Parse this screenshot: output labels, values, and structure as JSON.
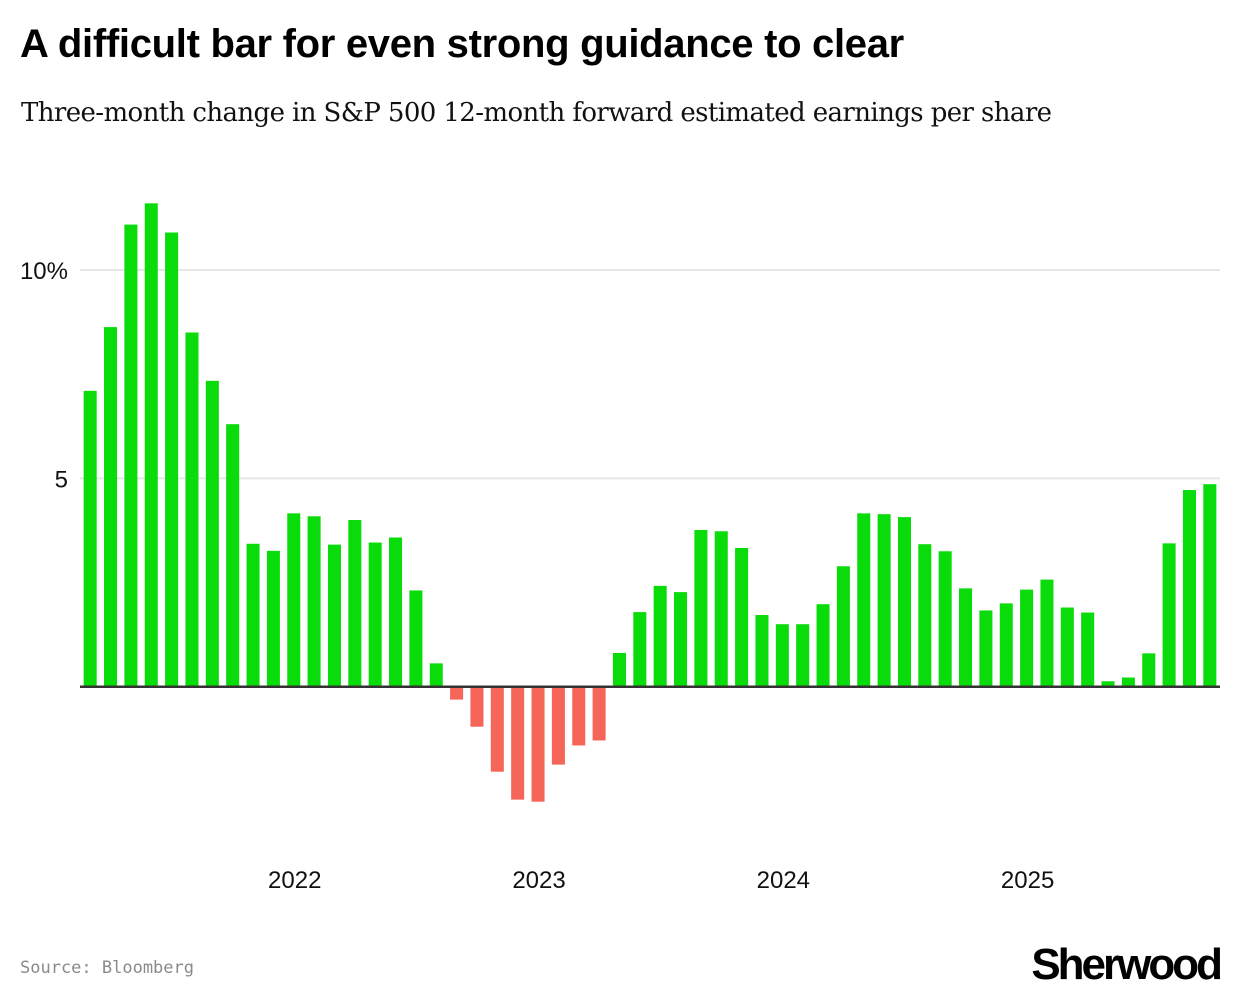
{
  "header": {
    "title": "A difficult bar for even strong guidance to clear",
    "subtitle": "Three-month change in S&P 500 12-month forward estimated earnings per share"
  },
  "footer": {
    "source": "Source: Bloomberg",
    "logo": "Sherwood"
  },
  "colors": {
    "positive": "#0adb0a",
    "negative": "#f66658",
    "baseline": "#333333",
    "gridline": "#e6e6e6"
  },
  "chart_data": {
    "type": "bar",
    "title": "A difficult bar for even strong guidance to clear",
    "subtitle": "Three-month change in S&P 500 12-month forward estimated earnings per share",
    "xlabel": "",
    "ylabel": "",
    "ylim": [
      -3.5,
      12
    ],
    "grid": true,
    "legend": "none",
    "y_ticks": [
      {
        "value": 10,
        "label": "10%"
      },
      {
        "value": 5,
        "label": "5"
      }
    ],
    "x_ticks": [
      {
        "index": 10,
        "label": "2022"
      },
      {
        "index": 22,
        "label": "2023"
      },
      {
        "index": 34,
        "label": "2024"
      },
      {
        "index": 46,
        "label": "2025"
      }
    ],
    "categories": [
      "2021-03",
      "2021-04",
      "2021-05",
      "2021-06",
      "2021-07",
      "2021-08",
      "2021-09",
      "2021-10",
      "2021-11",
      "2021-12",
      "2022-01",
      "2022-02",
      "2022-03",
      "2022-04",
      "2022-05",
      "2022-06",
      "2022-07",
      "2022-08",
      "2022-09",
      "2022-10",
      "2022-11",
      "2022-12",
      "2023-01",
      "2023-02",
      "2023-03",
      "2023-04",
      "2023-05",
      "2023-06",
      "2023-07",
      "2023-08",
      "2023-09",
      "2023-10",
      "2023-11",
      "2023-12",
      "2024-01",
      "2024-02",
      "2024-03",
      "2024-04",
      "2024-05",
      "2024-06",
      "2024-07",
      "2024-08",
      "2024-09",
      "2024-10",
      "2024-11",
      "2024-12",
      "2025-01",
      "2025-02",
      "2025-03",
      "2025-04",
      "2025-05",
      "2025-06",
      "2025-07",
      "2025-08",
      "2025-09",
      "2025-10"
    ],
    "values": [
      7.1,
      8.63,
      11.09,
      11.6,
      10.9,
      8.5,
      7.34,
      6.3,
      3.43,
      3.26,
      4.16,
      4.09,
      3.41,
      4.0,
      3.46,
      3.58,
      2.31,
      0.56,
      -0.31,
      -0.96,
      -2.04,
      -2.71,
      -2.76,
      -1.87,
      -1.41,
      -1.29,
      0.81,
      1.79,
      2.42,
      2.27,
      3.76,
      3.73,
      3.33,
      1.72,
      1.5,
      1.5,
      1.98,
      2.89,
      4.16,
      4.14,
      4.07,
      3.42,
      3.25,
      2.36,
      1.83,
      2.0,
      2.33,
      2.57,
      1.9,
      1.78,
      0.13,
      0.22,
      0.8,
      3.44,
      4.72,
      4.86
    ]
  }
}
